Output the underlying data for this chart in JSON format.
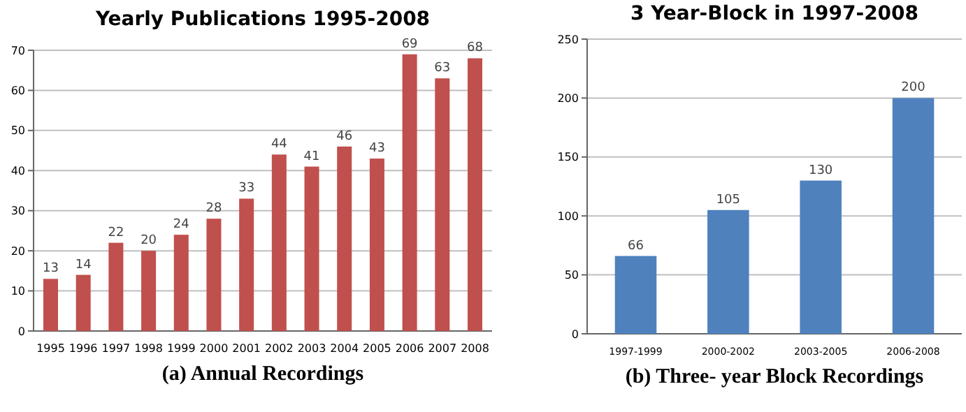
{
  "chart_data": [
    {
      "type": "bar",
      "title": "Yearly Publications  1995-2008",
      "categories": [
        "1995",
        "1996",
        "1997",
        "1998",
        "1999",
        "2000",
        "2001",
        "2002",
        "2003",
        "2004",
        "2005",
        "2006",
        "2007",
        "2008"
      ],
      "values": [
        13,
        14,
        22,
        20,
        24,
        28,
        33,
        44,
        41,
        46,
        43,
        69,
        63,
        68
      ],
      "color": "#c0504d",
      "ylim": [
        0,
        70
      ],
      "yticks": [
        0,
        10,
        20,
        30,
        40,
        50,
        60,
        70
      ],
      "grid": "y",
      "data_labels": true,
      "annotations": [
        "(a)  Annual Recordings"
      ]
    },
    {
      "type": "bar",
      "title": "3 Year-Block in 1997-2008",
      "categories": [
        "1997-1999",
        "2000-2002",
        "2003-2005",
        "2006-2008"
      ],
      "values": [
        66,
        105,
        130,
        200
      ],
      "color": "#4f81bd",
      "ylim": [
        0,
        250
      ],
      "yticks": [
        0,
        50,
        100,
        150,
        200,
        250
      ],
      "grid": "y",
      "data_labels": true,
      "annotations": [
        "(b)  Three- year Block Recordings"
      ]
    }
  ]
}
